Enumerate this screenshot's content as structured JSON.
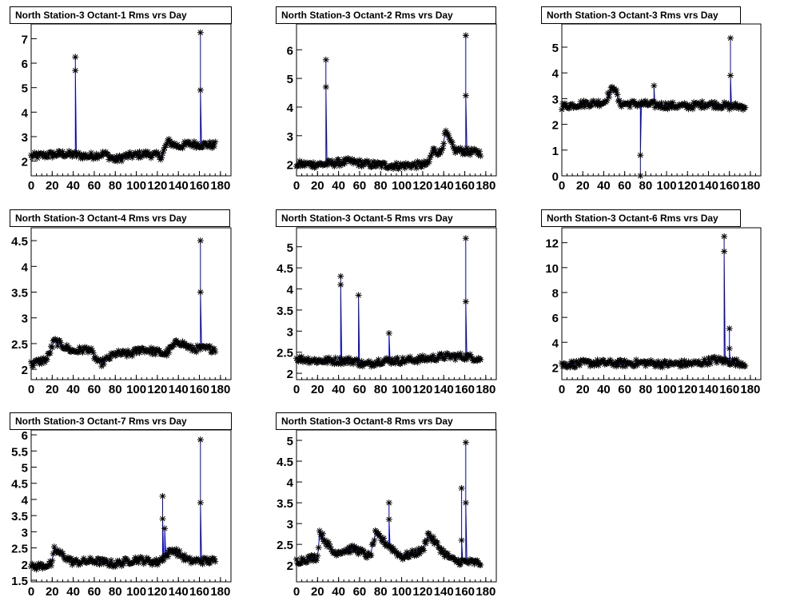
{
  "page": {
    "background": "#ffffff"
  },
  "style": {
    "series_color": "#0000cc",
    "marker_color": "#000000",
    "marker": "asterisk"
  },
  "chart_data": [
    {
      "type": "line",
      "title": "North Station-3 Octant-1 Rms vrs Day",
      "xlim": [
        0,
        190
      ],
      "ylim": [
        1.4,
        7.6
      ],
      "xticks": [
        0,
        20,
        40,
        60,
        80,
        100,
        120,
        140,
        160,
        180
      ],
      "yticks": [
        2,
        3,
        4,
        5,
        6,
        7
      ],
      "baseline": [
        [
          0,
          2.2
        ],
        [
          30,
          2.3
        ],
        [
          55,
          2.2
        ],
        [
          70,
          2.3
        ],
        [
          80,
          2.05
        ],
        [
          90,
          2.2
        ],
        [
          110,
          2.3
        ],
        [
          124,
          2.2
        ],
        [
          130,
          2.8
        ],
        [
          140,
          2.6
        ],
        [
          150,
          2.7
        ],
        [
          175,
          2.65
        ]
      ],
      "spikes": [
        [
          42,
          6.25
        ],
        [
          42,
          5.7
        ],
        [
          161,
          7.25
        ],
        [
          161,
          4.9
        ]
      ],
      "series": [
        {
          "name": "",
          "x_range": [
            0,
            175
          ]
        }
      ]
    },
    {
      "type": "line",
      "title": "North Station-3 Octant-2 Rms vrs Day",
      "xlim": [
        0,
        190
      ],
      "ylim": [
        1.6,
        6.9
      ],
      "xticks": [
        0,
        20,
        40,
        60,
        80,
        100,
        120,
        140,
        160,
        180
      ],
      "yticks": [
        2,
        3,
        4,
        5,
        6
      ],
      "baseline": [
        [
          0,
          2.0
        ],
        [
          25,
          2.0
        ],
        [
          50,
          2.1
        ],
        [
          70,
          2.0
        ],
        [
          95,
          1.95
        ],
        [
          125,
          2.0
        ],
        [
          130,
          2.5
        ],
        [
          137,
          2.4
        ],
        [
          142,
          3.1
        ],
        [
          150,
          2.5
        ],
        [
          175,
          2.4
        ]
      ],
      "spikes": [
        [
          28,
          5.65
        ],
        [
          28,
          4.7
        ],
        [
          161,
          6.5
        ],
        [
          161,
          4.4
        ]
      ],
      "series": [
        {
          "name": "",
          "x_range": [
            0,
            175
          ]
        }
      ]
    },
    {
      "type": "line",
      "title": "North Station-3 Octant-3 Rms vrs Day",
      "xlim": [
        0,
        190
      ],
      "ylim": [
        0,
        5.9
      ],
      "xticks": [
        0,
        20,
        40,
        60,
        80,
        100,
        120,
        140,
        160,
        180
      ],
      "yticks": [
        0,
        1,
        2,
        3,
        4,
        5
      ],
      "baseline": [
        [
          0,
          2.7
        ],
        [
          20,
          2.8
        ],
        [
          40,
          2.85
        ],
        [
          50,
          3.5
        ],
        [
          55,
          2.8
        ],
        [
          75,
          2.8
        ],
        [
          90,
          2.75
        ],
        [
          120,
          2.7
        ],
        [
          140,
          2.8
        ],
        [
          160,
          2.7
        ],
        [
          175,
          2.7
        ]
      ],
      "spikes": [
        [
          75,
          0.0
        ],
        [
          75,
          0.8
        ],
        [
          88,
          3.5
        ],
        [
          161,
          5.35
        ],
        [
          161,
          3.9
        ]
      ],
      "series": [
        {
          "name": "",
          "x_range": [
            0,
            175
          ]
        }
      ]
    },
    {
      "type": "line",
      "title": "North Station-3 Octant-4 Rms vrs Day",
      "xlim": [
        0,
        190
      ],
      "ylim": [
        1.8,
        4.75
      ],
      "xticks": [
        0,
        20,
        40,
        60,
        80,
        100,
        120,
        140,
        160,
        180
      ],
      "yticks": [
        2,
        2.5,
        3,
        3.5,
        4,
        4.5
      ],
      "yticklabels": [
        "2",
        "2.5",
        "3",
        "3.5",
        "4",
        "4.5"
      ],
      "baseline": [
        [
          0,
          2.1
        ],
        [
          15,
          2.2
        ],
        [
          22,
          2.55
        ],
        [
          40,
          2.35
        ],
        [
          55,
          2.4
        ],
        [
          65,
          2.1
        ],
        [
          80,
          2.3
        ],
        [
          95,
          2.3
        ],
        [
          105,
          2.4
        ],
        [
          128,
          2.3
        ],
        [
          140,
          2.55
        ],
        [
          152,
          2.4
        ],
        [
          175,
          2.4
        ]
      ],
      "spikes": [
        [
          161,
          4.5
        ],
        [
          161,
          3.5
        ]
      ],
      "series": [
        {
          "name": "",
          "x_range": [
            0,
            175
          ]
        }
      ]
    },
    {
      "type": "line",
      "title": "North Station-3 Octant-5 Rms vrs Day",
      "xlim": [
        0,
        190
      ],
      "ylim": [
        1.85,
        5.45
      ],
      "xticks": [
        0,
        20,
        40,
        60,
        80,
        100,
        120,
        140,
        160,
        180
      ],
      "yticks": [
        2,
        2.5,
        3,
        3.5,
        4,
        4.5,
        5
      ],
      "yticklabels": [
        "2",
        "2.5",
        "3",
        "3.5",
        "4",
        "4.5",
        "5"
      ],
      "baseline": [
        [
          0,
          2.35
        ],
        [
          20,
          2.3
        ],
        [
          40,
          2.3
        ],
        [
          55,
          2.3
        ],
        [
          65,
          2.2
        ],
        [
          80,
          2.3
        ],
        [
          100,
          2.3
        ],
        [
          125,
          2.35
        ],
        [
          140,
          2.4
        ],
        [
          160,
          2.4
        ],
        [
          175,
          2.35
        ]
      ],
      "spikes": [
        [
          42,
          4.3
        ],
        [
          42,
          4.1
        ],
        [
          59,
          3.85
        ],
        [
          88,
          2.95
        ],
        [
          161,
          5.2
        ],
        [
          161,
          3.7
        ]
      ],
      "series": [
        {
          "name": "",
          "x_range": [
            0,
            175
          ]
        }
      ]
    },
    {
      "type": "line",
      "title": "North Station-3 Octant-6 Rms vrs Day",
      "xlim": [
        0,
        190
      ],
      "ylim": [
        1.0,
        13.2
      ],
      "xticks": [
        0,
        20,
        40,
        60,
        80,
        100,
        120,
        140,
        160,
        180
      ],
      "yticks": [
        2,
        4,
        6,
        8,
        10,
        12
      ],
      "baseline": [
        [
          0,
          2.2
        ],
        [
          30,
          2.35
        ],
        [
          60,
          2.3
        ],
        [
          80,
          2.35
        ],
        [
          100,
          2.25
        ],
        [
          130,
          2.3
        ],
        [
          145,
          2.6
        ],
        [
          175,
          2.3
        ]
      ],
      "spikes": [
        [
          155,
          12.5
        ],
        [
          155,
          11.3
        ],
        [
          160,
          5.1
        ],
        [
          160,
          3.5
        ]
      ],
      "series": [
        {
          "name": "",
          "x_range": [
            0,
            175
          ]
        }
      ]
    },
    {
      "type": "line",
      "title": "North Station-3 Octant-7 Rms vrs Day",
      "xlim": [
        0,
        190
      ],
      "ylim": [
        1.45,
        6.15
      ],
      "xticks": [
        0,
        20,
        40,
        60,
        80,
        100,
        120,
        140,
        160,
        180
      ],
      "yticks": [
        1.5,
        2,
        2.5,
        3,
        3.5,
        4,
        4.5,
        5,
        5.5,
        6
      ],
      "yticklabels": [
        "1.5",
        "2",
        "2.5",
        "3",
        "3.5",
        "4",
        "4.5",
        "5",
        "5.5",
        "6"
      ],
      "baseline": [
        [
          0,
          1.9
        ],
        [
          20,
          2.0
        ],
        [
          22,
          2.45
        ],
        [
          40,
          2.05
        ],
        [
          60,
          2.1
        ],
        [
          80,
          2.0
        ],
        [
          100,
          2.15
        ],
        [
          120,
          2.05
        ],
        [
          135,
          2.45
        ],
        [
          150,
          2.1
        ],
        [
          175,
          2.1
        ]
      ],
      "spikes": [
        [
          125,
          4.1
        ],
        [
          125,
          3.4
        ],
        [
          127,
          3.1
        ],
        [
          161,
          5.85
        ],
        [
          161,
          3.9
        ]
      ],
      "series": [
        {
          "name": "",
          "x_range": [
            0,
            175
          ]
        }
      ]
    },
    {
      "type": "line",
      "title": "North Station-3 Octant-8 Rms vrs Day",
      "xlim": [
        0,
        190
      ],
      "ylim": [
        1.6,
        5.25
      ],
      "xticks": [
        0,
        20,
        40,
        60,
        80,
        100,
        120,
        140,
        160,
        180
      ],
      "yticks": [
        2,
        2.5,
        3,
        3.5,
        4,
        4.5,
        5
      ],
      "yticklabels": [
        "2",
        "2.5",
        "3",
        "3.5",
        "4",
        "4.5",
        "5"
      ],
      "baseline": [
        [
          0,
          2.1
        ],
        [
          20,
          2.2
        ],
        [
          22,
          2.8
        ],
        [
          35,
          2.3
        ],
        [
          55,
          2.4
        ],
        [
          70,
          2.2
        ],
        [
          75,
          2.75
        ],
        [
          100,
          2.2
        ],
        [
          120,
          2.35
        ],
        [
          125,
          2.75
        ],
        [
          140,
          2.3
        ],
        [
          150,
          2.1
        ],
        [
          175,
          2.05
        ]
      ],
      "spikes": [
        [
          88,
          3.5
        ],
        [
          88,
          3.1
        ],
        [
          157,
          3.85
        ],
        [
          157,
          2.6
        ],
        [
          161,
          4.95
        ],
        [
          161,
          3.5
        ]
      ],
      "series": [
        {
          "name": "",
          "x_range": [
            0,
            175
          ]
        }
      ]
    }
  ]
}
